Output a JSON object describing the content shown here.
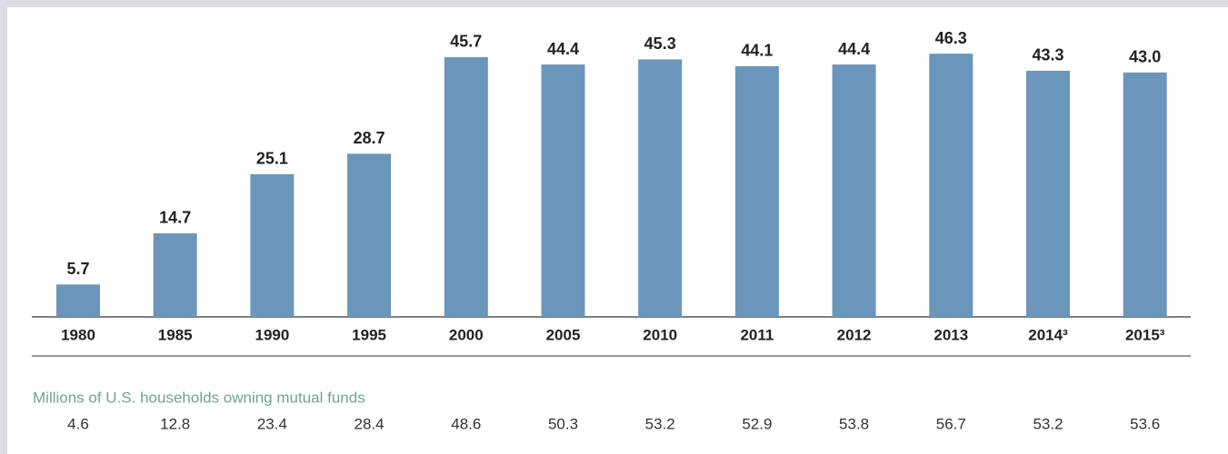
{
  "chart_data": {
    "type": "bar",
    "categories": [
      "1980",
      "1985",
      "1990",
      "1995",
      "2000",
      "2005",
      "2010",
      "2011",
      "2012",
      "2013",
      "2014³",
      "2015³"
    ],
    "values": [
      5.7,
      14.7,
      25.1,
      28.7,
      45.7,
      44.4,
      45.3,
      44.1,
      44.4,
      46.3,
      43.3,
      43.0
    ],
    "value_labels": [
      "5.7",
      "14.7",
      "25.1",
      "28.7",
      "45.7",
      "44.4",
      "45.3",
      "44.1",
      "44.4",
      "46.3",
      "43.3",
      "43.0"
    ],
    "color": "#6a96bc"
  },
  "households": {
    "label": "Millions of U.S. households owning mutual funds",
    "values": [
      4.6,
      12.8,
      23.4,
      28.4,
      48.6,
      50.3,
      53.2,
      52.9,
      53.8,
      56.7,
      53.2,
      53.6
    ]
  }
}
